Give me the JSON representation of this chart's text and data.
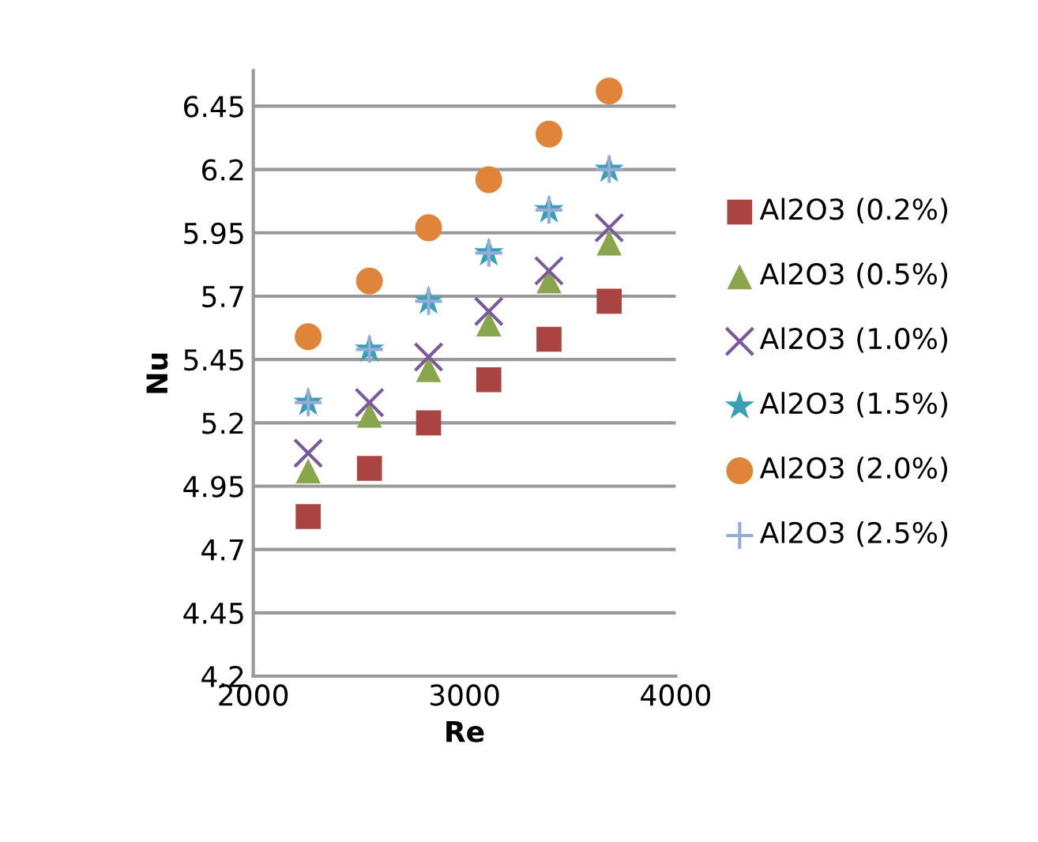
{
  "chart_data": {
    "type": "scatter",
    "xlabel": "Re",
    "ylabel": "Nu",
    "xlim": [
      2000,
      4000
    ],
    "xticks": [
      2000,
      3000,
      4000
    ],
    "ylim": [
      4.2,
      6.59
    ],
    "yticks": [
      4.2,
      4.45,
      4.7,
      4.95,
      5.2,
      5.45,
      5.7,
      5.95,
      6.2,
      6.45
    ],
    "grid": "y",
    "legend": "right",
    "x": [
      2260,
      2550,
      2830,
      3115,
      3400,
      3685
    ],
    "series": [
      {
        "name": "Al2O3 (0.2%)",
        "color": "#a94442",
        "marker": "square",
        "values": [
          4.83,
          5.02,
          5.2,
          5.37,
          5.53,
          5.68
        ]
      },
      {
        "name": "Al2O3 (0.5%)",
        "color": "#8aa64c",
        "marker": "triangle",
        "values": [
          5.01,
          5.23,
          5.41,
          5.59,
          5.76,
          5.91
        ]
      },
      {
        "name": "Al2O3 (1.0%)",
        "color": "#7a5a9a",
        "marker": "cross",
        "values": [
          5.08,
          5.28,
          5.46,
          5.64,
          5.8,
          5.97
        ]
      },
      {
        "name": "Al2O3 (1.5%)",
        "color": "#3aa0b8",
        "marker": "star",
        "values": [
          5.28,
          5.49,
          5.68,
          5.87,
          6.04,
          6.2
        ]
      },
      {
        "name": "Al2O3 (2.0%)",
        "color": "#e0843a",
        "marker": "circle",
        "values": [
          5.54,
          5.76,
          5.97,
          6.16,
          6.34,
          6.51
        ]
      },
      {
        "name": "Al2O3 (2.5%)",
        "color": "#94acd8",
        "values": [
          5.28,
          5.49,
          5.68,
          5.87,
          6.04,
          6.2
        ]
      }
    ]
  }
}
